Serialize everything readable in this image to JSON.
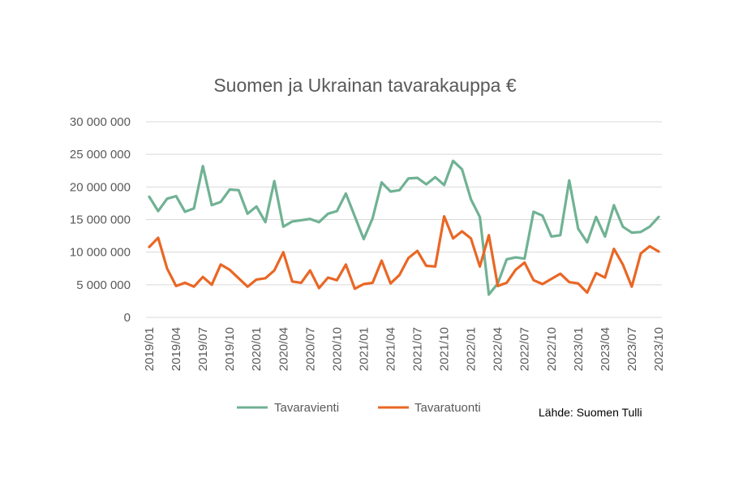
{
  "chart_data": {
    "type": "line",
    "title": "Suomen ja Ukrainan tavarakauppa €",
    "source": "Lähde: Suomen Tulli",
    "xlabel": "",
    "ylabel": "",
    "ylim": [
      0,
      30000000
    ],
    "yticks": [
      0,
      5000000,
      10000000,
      15000000,
      20000000,
      25000000,
      30000000
    ],
    "ytick_labels": [
      "0",
      "5 000 000",
      "10 000 000",
      "15 000 000",
      "20 000 000",
      "25 000 000",
      "30 000 000"
    ],
    "x": [
      "2019/01",
      "2019/02",
      "2019/03",
      "2019/04",
      "2019/05",
      "2019/06",
      "2019/07",
      "2019/08",
      "2019/09",
      "2019/10",
      "2019/11",
      "2019/12",
      "2020/01",
      "2020/02",
      "2020/03",
      "2020/04",
      "2020/05",
      "2020/06",
      "2020/07",
      "2020/08",
      "2020/09",
      "2020/10",
      "2020/11",
      "2020/12",
      "2021/01",
      "2021/02",
      "2021/03",
      "2021/04",
      "2021/05",
      "2021/06",
      "2021/07",
      "2021/08",
      "2021/09",
      "2021/10",
      "2021/11",
      "2021/12",
      "2022/01",
      "2022/02",
      "2022/03",
      "2022/04",
      "2022/05",
      "2022/06",
      "2022/07",
      "2022/08",
      "2022/09",
      "2022/10",
      "2022/11",
      "2022/12",
      "2023/01",
      "2023/02",
      "2023/03",
      "2023/04",
      "2023/05",
      "2023/06",
      "2023/07",
      "2023/08",
      "2023/09",
      "2023/10"
    ],
    "x_tick_labels": [
      "2019/01",
      "2019/04",
      "2019/07",
      "2019/10",
      "2020/01",
      "2020/04",
      "2020/07",
      "2020/10",
      "2021/01",
      "2021/04",
      "2021/07",
      "2021/10",
      "2022/01",
      "2022/04",
      "2022/07",
      "2022/10",
      "2023/01",
      "2023/04",
      "2023/07",
      "2023/10"
    ],
    "grid": true,
    "legend_position": "bottom",
    "series": [
      {
        "name": "Tavaravienti",
        "color": "#70b294",
        "values": [
          18500000,
          16300000,
          18200000,
          18600000,
          16200000,
          16700000,
          23200000,
          17200000,
          17700000,
          19600000,
          19500000,
          15900000,
          17000000,
          14600000,
          20900000,
          13900000,
          14700000,
          14900000,
          15100000,
          14600000,
          15900000,
          16300000,
          19000000,
          15500000,
          12000000,
          15200000,
          20700000,
          19300000,
          19500000,
          21300000,
          21400000,
          20400000,
          21500000,
          20300000,
          24000000,
          22700000,
          18100000,
          15400000,
          3500000,
          5200000,
          8900000,
          9200000,
          9000000,
          16200000,
          15600000,
          12400000,
          12600000,
          21000000,
          13600000,
          11500000,
          15400000,
          12400000,
          17200000,
          13900000,
          13000000,
          13100000,
          13900000,
          15400000
        ]
      },
      {
        "name": "Tavaratuonti",
        "color": "#e96725",
        "values": [
          10800000,
          12200000,
          7500000,
          4800000,
          5300000,
          4700000,
          6200000,
          5000000,
          8100000,
          7300000,
          6000000,
          4700000,
          5800000,
          6000000,
          7200000,
          10000000,
          5500000,
          5300000,
          7200000,
          4500000,
          6100000,
          5700000,
          8100000,
          4400000,
          5100000,
          5300000,
          8700000,
          5200000,
          6500000,
          9100000,
          10200000,
          7900000,
          7800000,
          15500000,
          12100000,
          13200000,
          12100000,
          7800000,
          12600000,
          4800000,
          5300000,
          7300000,
          8400000,
          5700000,
          5100000,
          5900000,
          6700000,
          5400000,
          5200000,
          3800000,
          6800000,
          6100000,
          10500000,
          8100000,
          4700000,
          9800000,
          10900000,
          10100000
        ]
      }
    ]
  }
}
